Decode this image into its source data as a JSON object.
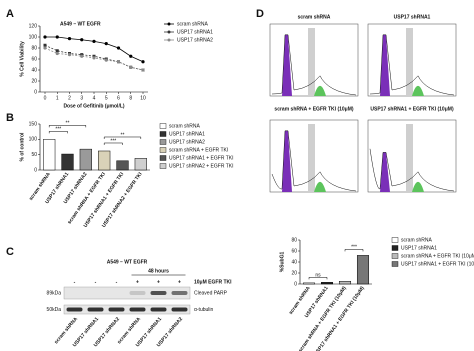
{
  "panels": [
    "A",
    "B",
    "C",
    "D"
  ],
  "chart_data": [
    {
      "type": "line",
      "title": "A549 – WT EGFR",
      "x_label": "Dose of Gefitinib (μmol/L)",
      "y_label": "% Cell Viability",
      "categories": [
        "0",
        "1",
        "2",
        "3",
        "4",
        "5",
        "6",
        "8",
        "10"
      ],
      "ylim": [
        0,
        120
      ],
      "yticks": [
        0,
        20,
        40,
        60,
        80,
        100,
        120
      ],
      "series": [
        {
          "name": "scram shRNA",
          "color": "#000000",
          "values": [
            100,
            100,
            97,
            95,
            92,
            88,
            80,
            65,
            55
          ]
        },
        {
          "name": "USP17 shRNA1",
          "color": "#333333",
          "values": [
            85,
            75,
            70,
            68,
            65,
            60,
            55,
            45,
            40
          ]
        },
        {
          "name": "USP17 shRNA2",
          "color": "#888888",
          "values": [
            80,
            70,
            68,
            65,
            62,
            58,
            55,
            45,
            40
          ]
        }
      ]
    },
    {
      "type": "bar",
      "y_label": "% of control",
      "categories": [
        "scram shRNA",
        "USP17 shRNA1",
        "USP17 shRNA2",
        "scram shRNA + EGFR TKI",
        "USP17 shRNA1 + EGFR TKI",
        "USP17 shRNA2 + EGFR TKI"
      ],
      "values": [
        100,
        52,
        68,
        62,
        30,
        38
      ],
      "colors": [
        "#ffffff",
        "#333333",
        "#9a9a9a",
        "#d9d2b8",
        "#555555",
        "#cfcfcf"
      ],
      "ylim": [
        0,
        150
      ],
      "yticks": [
        0,
        50,
        100,
        150
      ],
      "annotations": [
        "***",
        "**",
        "***",
        "**"
      ]
    },
    {
      "type": "bar",
      "y_label": "%SubG1",
      "categories": [
        "scram shRNA",
        "USP17 shRNA1",
        "scram shRNA + EGFR TKI (10μM)",
        "USP17 shRNA1 + EGFR TKI (10μM)"
      ],
      "values": [
        2,
        3,
        5,
        52
      ],
      "colors": [
        "#ffffff",
        "#222222",
        "#bbbbbb",
        "#777777"
      ],
      "ylim": [
        0,
        80
      ],
      "yticks": [
        0,
        20,
        40,
        60,
        80
      ],
      "annotations": [
        "ns",
        "***"
      ]
    }
  ],
  "blot": {
    "title": "A549 – WT EGFR",
    "time": "48 hours",
    "treatment": "10μM EGFR TKI",
    "signs": [
      "-",
      "-",
      "-",
      "+",
      "+",
      "+"
    ],
    "sizes": [
      "89kDa",
      "50kDa"
    ],
    "bands": [
      "Cleaved PARP",
      "α-tubulin"
    ],
    "lanes": [
      "scram shRNA",
      "USP17 shRNA1",
      "USP17 shRNA2",
      "scram shRNA",
      "USP17 shRNA1",
      "USP17 shRNA2"
    ]
  },
  "histograms": [
    "scram shRNA",
    "USP17 shRNA1",
    "scram shRNA + EGFR TKI (10μM)",
    "USP17 shRNA1 + EGFR TKI (10μM)"
  ]
}
